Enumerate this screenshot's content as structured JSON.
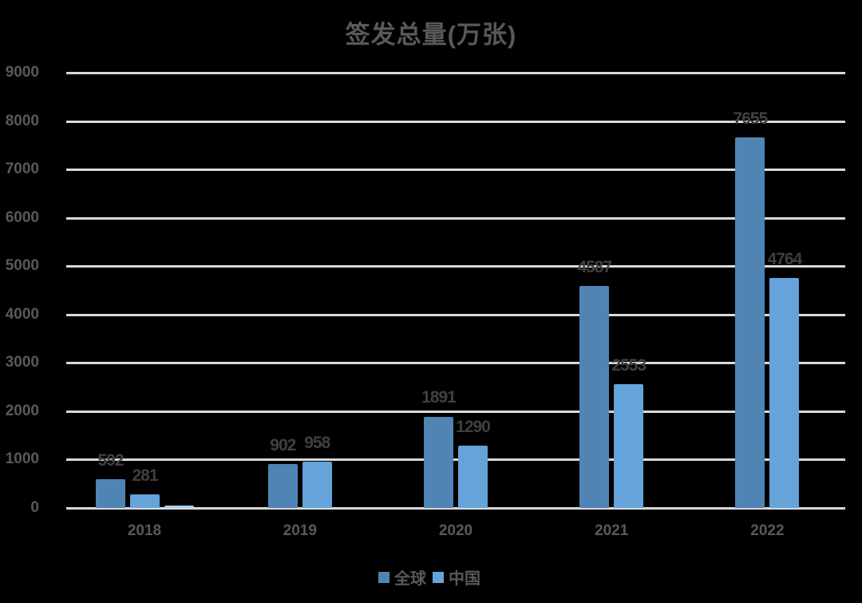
{
  "chart_data": {
    "type": "bar",
    "title": "签发总量(万张)",
    "xlabel": "",
    "ylabel": "",
    "ylim": [
      0,
      9000
    ],
    "yticks": [
      0,
      1000,
      2000,
      3000,
      4000,
      5000,
      6000,
      7000,
      8000,
      9000
    ],
    "grid": true,
    "legend_position": "bottom",
    "categories": [
      "2018",
      "2019",
      "2020",
      "2021",
      "2022"
    ],
    "series": [
      {
        "name": "全球",
        "color": "#5084b5",
        "values": [
          592,
          902,
          1891,
          4587,
          7655
        ]
      },
      {
        "name": "中国",
        "color": "#64a4da",
        "values": [
          281,
          958,
          1290,
          2553,
          4764
        ]
      }
    ],
    "extra_unlabeled_bar": {
      "category": "2018",
      "approx_value": 40,
      "color": "#a9cdf0"
    }
  },
  "title": "签发总量(万张)",
  "legend": [
    {
      "label": "全球",
      "color": "#5084b5"
    },
    {
      "label": "中国",
      "color": "#64a4da"
    }
  ]
}
